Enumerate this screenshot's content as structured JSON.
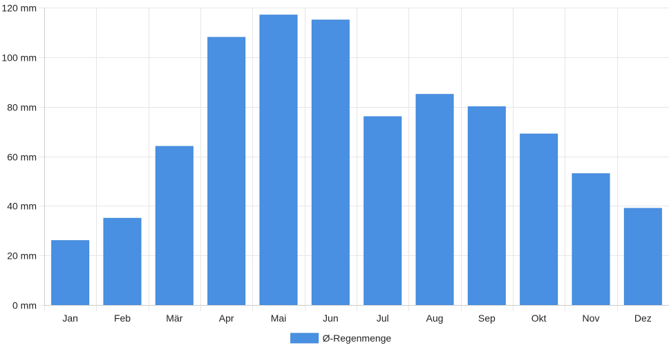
{
  "chart_data": {
    "type": "bar",
    "categories": [
      "Jan",
      "Feb",
      "Mär",
      "Apr",
      "Mai",
      "Jun",
      "Jul",
      "Aug",
      "Sep",
      "Okt",
      "Nov",
      "Dez"
    ],
    "series": [
      {
        "name": "Ø-Regenmenge",
        "values": [
          26,
          35,
          64,
          108,
          117,
          115,
          76,
          85,
          80,
          69,
          53,
          39
        ],
        "color": "#4a90e2"
      }
    ],
    "y_ticks": [
      "0 mm",
      "20 mm",
      "40 mm",
      "60 mm",
      "80 mm",
      "100 mm",
      "120 mm"
    ],
    "y_tick_values": [
      0,
      20,
      40,
      60,
      80,
      100,
      120
    ],
    "ylim": [
      0,
      120
    ],
    "grid": true,
    "legend_position": "bottom-center",
    "gridline_color": "#e6e6e6",
    "axis_color": "#cccccc"
  }
}
